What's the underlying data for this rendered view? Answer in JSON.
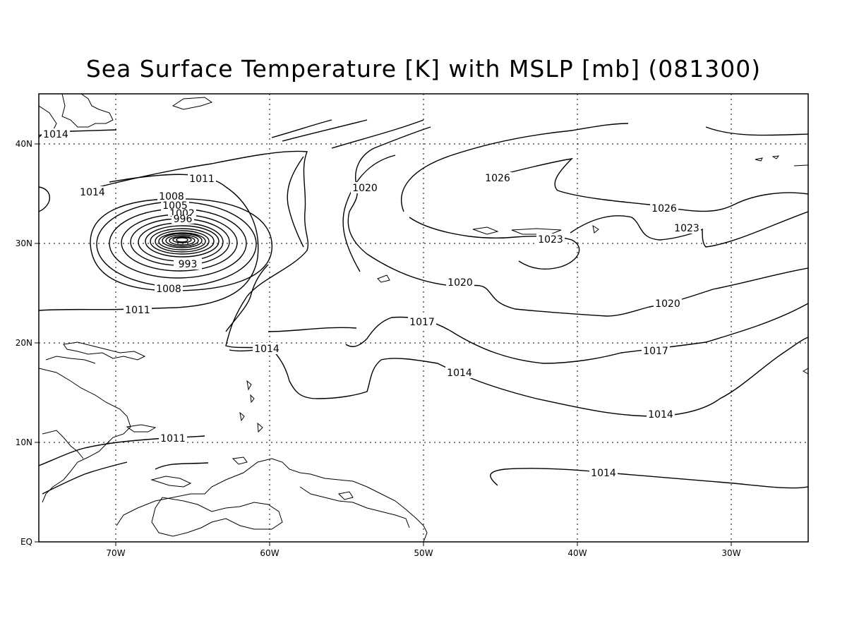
{
  "title": "Sea Surface Temperature [K] with MSLP [mb] (081300)",
  "lat_ticks": [
    "EQ",
    "10N",
    "20N",
    "30N",
    "40N"
  ],
  "lon_ticks": [
    "70W",
    "60W",
    "50W",
    "40W",
    "30W"
  ],
  "contour_labels": {
    "l1014_nw": "1014",
    "l1014_w": "1014",
    "l1011_n": "1011",
    "l1008_n": "1008",
    "l1005": "1005",
    "l1002": "1002",
    "l996": "996",
    "l993": "993",
    "l1008_s": "1008",
    "l1011_s": "1011",
    "l1014_c": "1014",
    "l1011_car": "1011",
    "l1020_n": "1020",
    "l1026_a": "1026",
    "l1026_b": "1026",
    "l1023_a": "1023",
    "l1023_b": "1023",
    "l1020_c": "1020",
    "l1020_e": "1020",
    "l1017_c": "1017",
    "l1017_e": "1017",
    "l1014_m": "1014",
    "l1014_e": "1014",
    "l1014_se": "1014"
  },
  "chart_data": {
    "type": "contour-map",
    "title": "Sea Surface Temperature [K] with MSLP [mb] (081300)",
    "variable": "MSLP",
    "units": "mb",
    "lon_range": [
      -75,
      -25
    ],
    "lat_range": [
      0,
      45
    ],
    "contour_interval": 3,
    "grid": true,
    "low_center": {
      "lon": -65.8,
      "lat": 30.4,
      "min_labeled": 993
    },
    "contour_levels_labeled": [
      993,
      996,
      1002,
      1005,
      1008,
      1011,
      1014,
      1017,
      1020,
      1023,
      1026
    ]
  }
}
